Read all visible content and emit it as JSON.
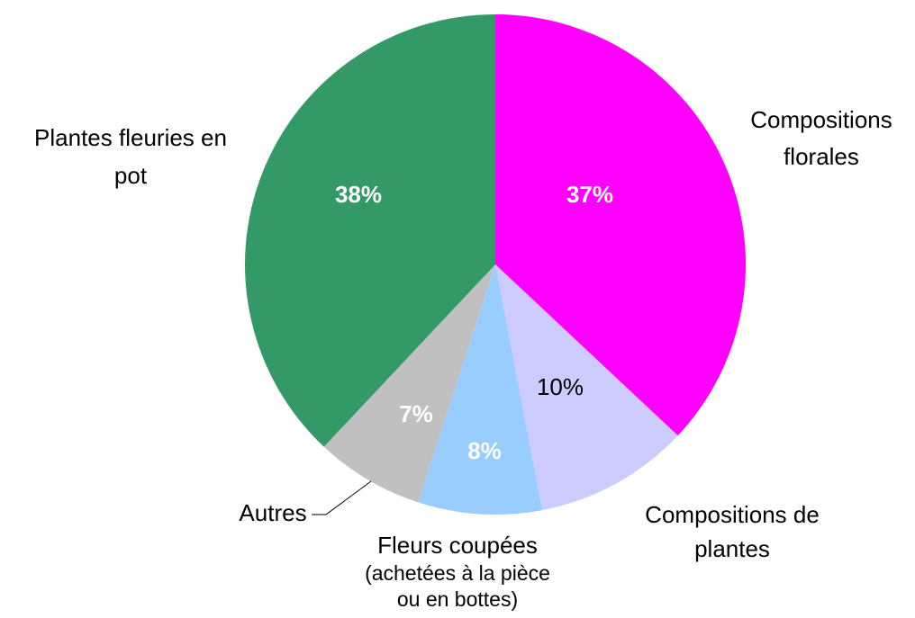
{
  "chart_data": {
    "type": "pie",
    "categories": [
      [
        "Compositions",
        "florales"
      ],
      [
        "Compositions de",
        "plantes"
      ],
      [
        "Fleurs coupées",
        "(achetées à la pièce",
        "ou en bottes)"
      ],
      [
        "Autres"
      ],
      [
        "Plantes fleuries en",
        "pot"
      ]
    ],
    "values": [
      37,
      10,
      8,
      7,
      38
    ],
    "value_labels": [
      "37%",
      "10%",
      "8%",
      "7%",
      "38%"
    ],
    "colors": [
      "#ff00ff",
      "#ccccff",
      "#99ccff",
      "#c0c0c0",
      "#339966"
    ],
    "label_colors": [
      "#ffffff",
      "#000000",
      "#ffffff",
      "#ffffff",
      "#ffffff"
    ]
  }
}
